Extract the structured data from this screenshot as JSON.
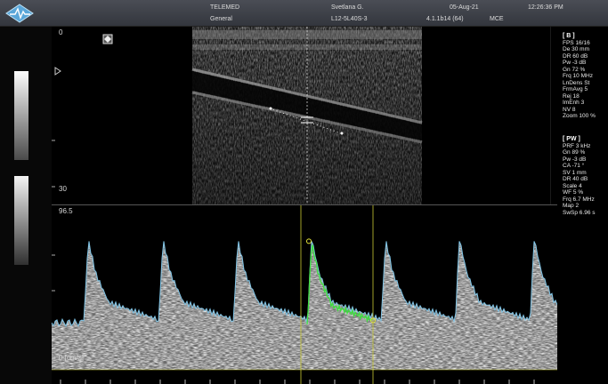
{
  "header": {
    "brand": "TELEMED",
    "preset": "General",
    "patient": "Svetlana G.",
    "probe": "L12-5L40S-3",
    "date": "05-Aug-21",
    "version": "4.1.1b14 (64)",
    "mode_label": "MCE",
    "time": "12:26:36 PM"
  },
  "bmode": {
    "depth_top": "0",
    "depth_bottom": "30"
  },
  "doppler": {
    "scale_top": "96.5",
    "baseline_label": "0 [cm/s]"
  },
  "params_b": {
    "heading": "[ B ]",
    "lines": [
      "FPS 16/16",
      "De 30 mm",
      "DR 60 dB",
      "Pw -3 dB",
      "Gn 72 %",
      "Frq 10 MHz",
      "LnDens St",
      "FrmAvg 5",
      "Rej 18",
      "ImEnh 3",
      "NV 8",
      "Zoom 100 %"
    ]
  },
  "params_pw": {
    "heading": "[ PW ]",
    "lines": [
      "PRF 3 kHz",
      "Gn 89 %",
      "Pw -3 dB",
      "CA -71 °",
      "SV 1 mm",
      "DR 40 dB",
      "Scale 4",
      "WF 5 %",
      "Frq 6.7 MHz",
      "Map 2",
      "SwSp 6.96 s"
    ]
  },
  "colors": {
    "envelope": "#7fc4e6",
    "measure_trace": "#3de03d",
    "cursor_line": "#c8c832"
  }
}
